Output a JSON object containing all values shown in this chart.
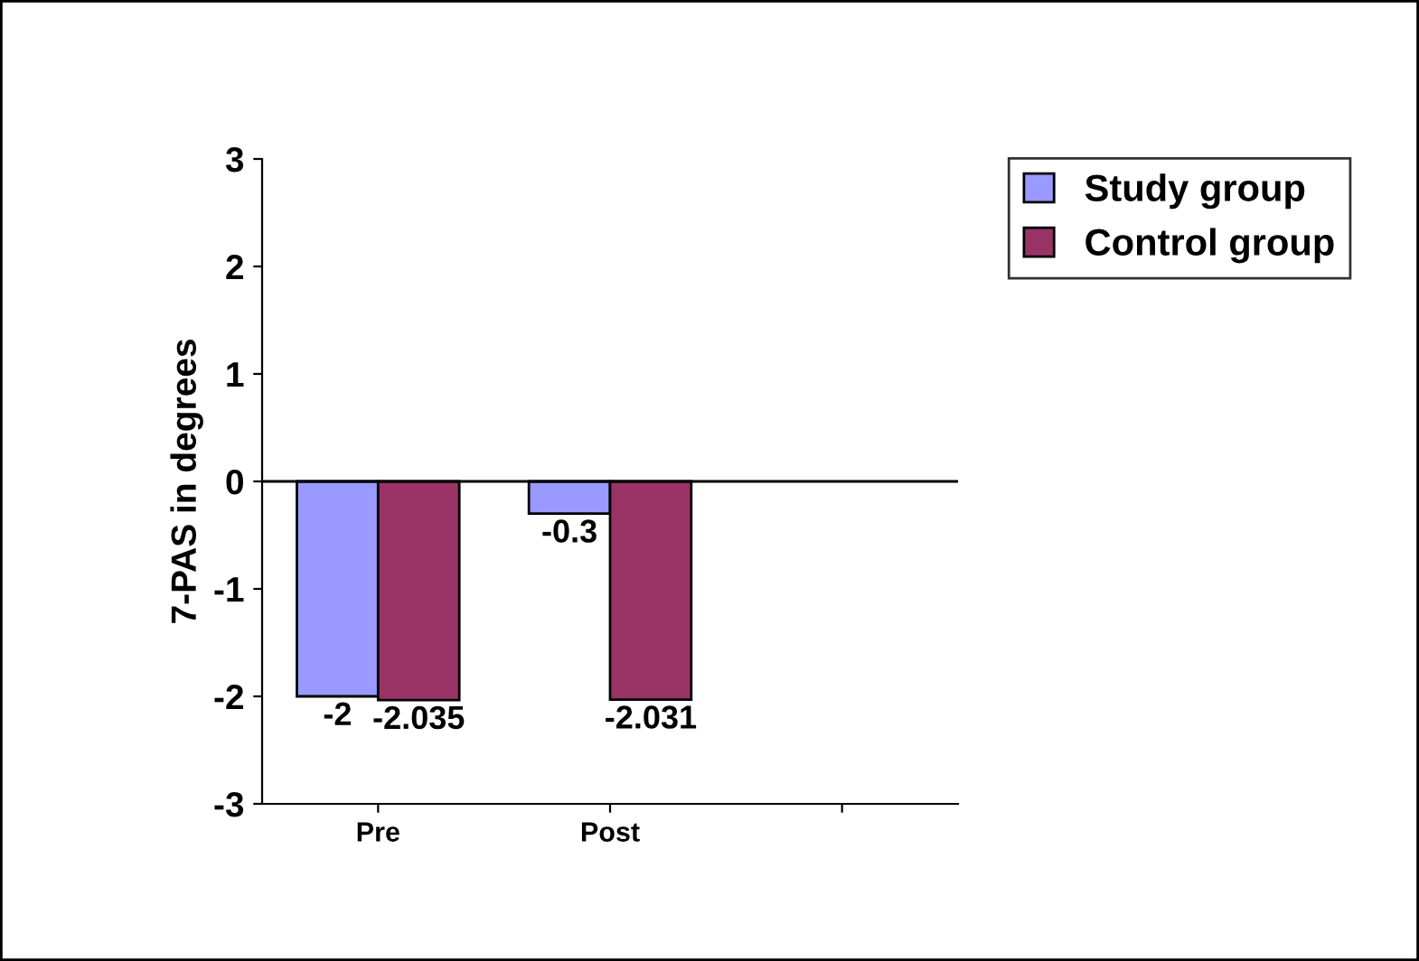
{
  "chart_data": {
    "type": "bar",
    "ylabel": "7-PAS in degrees",
    "categories": [
      "Pre",
      "Post",
      null
    ],
    "series": [
      {
        "name": "Study group",
        "color": "#9999ff",
        "values": [
          -2,
          -0.3,
          null
        ]
      },
      {
        "name": "Control group",
        "color": "#993366",
        "values": [
          -2.035,
          -2.031,
          null
        ]
      }
    ],
    "ylim": [
      -3,
      3
    ],
    "yticks": [
      -3,
      -2,
      -1,
      0,
      1,
      2,
      3
    ],
    "ref_lines": [
      {
        "axis": "y",
        "value": 0
      }
    ],
    "legend": "top right",
    "data_labels": true
  }
}
